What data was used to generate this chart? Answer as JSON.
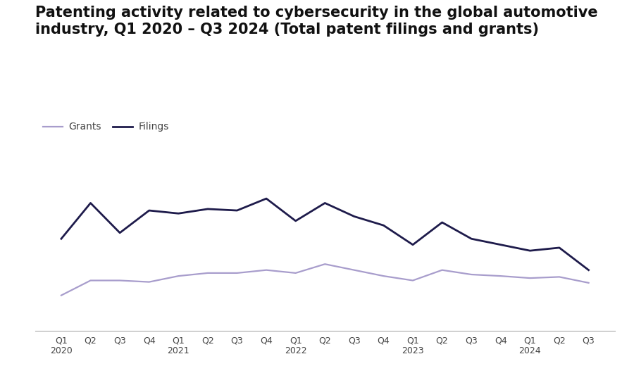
{
  "title": "Patenting activity related to cybersecurity in the global automotive\nindustry, Q1 2020 – Q3 2024 (Total patent filings and grants)",
  "title_fontsize": 15,
  "title_fontweight": "bold",
  "background_color": "#ffffff",
  "filings": [
    310,
    430,
    330,
    405,
    395,
    410,
    405,
    445,
    370,
    430,
    385,
    355,
    290,
    365,
    310,
    290,
    270,
    280,
    205
  ],
  "grants": [
    120,
    170,
    170,
    165,
    185,
    195,
    195,
    205,
    195,
    225,
    205,
    185,
    170,
    205,
    190,
    185,
    178,
    182,
    162
  ],
  "filings_color": "#1e1b4b",
  "grants_color": "#a89dcc",
  "filings_linewidth": 2.0,
  "grants_linewidth": 1.6,
  "legend_grants_label": "Grants",
  "legend_filings_label": "Filings",
  "ylim_min": 0,
  "ylim_max": 530,
  "tick_fontsize": 9,
  "bottom_spine_color": "#aaaaaa"
}
